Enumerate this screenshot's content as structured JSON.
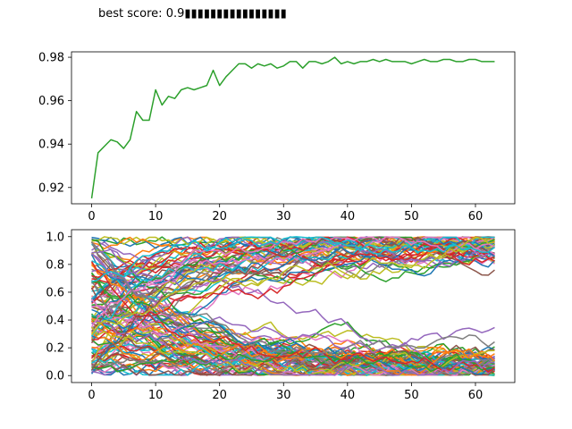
{
  "title": "best score: 0.9▮▮▮▮▮▮▮▮▮▮▮▮▮▮▮▮",
  "chart_data": [
    {
      "type": "line",
      "xlim": [
        -3.15,
        66.15
      ],
      "ylim": [
        0.9125,
        0.9825
      ],
      "xticks": [
        0,
        10,
        20,
        30,
        40,
        50,
        60
      ],
      "yticks": [
        0.92,
        0.94,
        0.96,
        0.98
      ],
      "ytick_labels": [
        "0.92",
        "0.94",
        "0.96",
        "0.98"
      ],
      "grid": false,
      "series": [
        {
          "color": "#2ca02c",
          "x": [
            0,
            1,
            2,
            3,
            4,
            5,
            6,
            7,
            8,
            9,
            10,
            11,
            12,
            13,
            14,
            15,
            16,
            17,
            18,
            19,
            20,
            21,
            22,
            23,
            24,
            25,
            26,
            27,
            28,
            29,
            30,
            31,
            32,
            33,
            34,
            35,
            36,
            37,
            38,
            39,
            40,
            41,
            42,
            43,
            44,
            45,
            46,
            47,
            48,
            49,
            50,
            51,
            52,
            53,
            54,
            55,
            56,
            57,
            58,
            59,
            60,
            61,
            62,
            63
          ],
          "values": [
            0.915,
            0.936,
            0.939,
            0.942,
            0.941,
            0.938,
            0.942,
            0.955,
            0.951,
            0.951,
            0.965,
            0.958,
            0.962,
            0.961,
            0.965,
            0.966,
            0.965,
            0.966,
            0.967,
            0.974,
            0.967,
            0.971,
            0.974,
            0.977,
            0.977,
            0.975,
            0.977,
            0.976,
            0.977,
            0.975,
            0.976,
            0.978,
            0.978,
            0.975,
            0.978,
            0.978,
            0.977,
            0.978,
            0.98,
            0.977,
            0.978,
            0.977,
            0.978,
            0.978,
            0.979,
            0.978,
            0.979,
            0.978,
            0.978,
            0.978,
            0.977,
            0.978,
            0.979,
            0.978,
            0.978,
            0.979,
            0.979,
            0.978,
            0.978,
            0.979,
            0.979,
            0.978,
            0.978,
            0.978
          ]
        }
      ]
    },
    {
      "type": "line",
      "xlim": [
        -3.15,
        66.15
      ],
      "ylim": [
        -0.05,
        1.05
      ],
      "xticks": [
        0,
        10,
        20,
        30,
        40,
        50,
        60
      ],
      "yticks": [
        0.0,
        0.2,
        0.4,
        0.6,
        0.8,
        1.0
      ],
      "ytick_labels": [
        "0.0",
        "0.2",
        "0.4",
        "0.6",
        "0.8",
        "1.0"
      ],
      "grid": false,
      "series_count": 120,
      "series_pattern": "each series starts at x=0 with a random value in [0,1], drifts toward either 0 or 1 over x=0..63 with jagged noise",
      "colors": [
        "#1f77b4",
        "#ff7f0e",
        "#2ca02c",
        "#d62728",
        "#9467bd",
        "#8c564b",
        "#e377c2",
        "#7f7f7f",
        "#bcbd22",
        "#17becf"
      ]
    }
  ]
}
